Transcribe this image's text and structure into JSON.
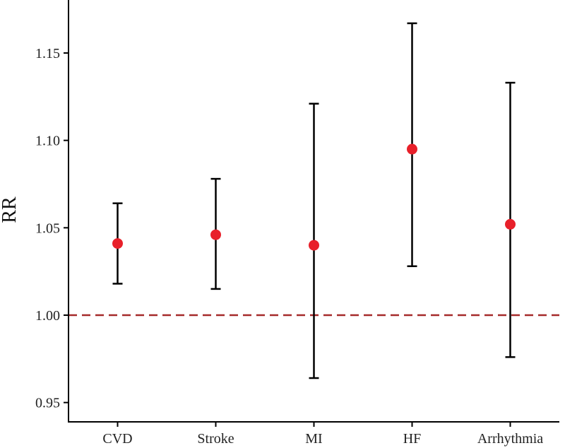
{
  "chart_data": {
    "type": "scatter",
    "title": "",
    "xlabel": "",
    "ylabel": "RR",
    "ylim": [
      0.93,
      1.19
    ],
    "yticks": [
      0.95,
      1.0,
      1.05,
      1.1,
      1.15
    ],
    "ytick_labels": [
      "0.95",
      "1.00",
      "1.05",
      "1.10",
      "1.15"
    ],
    "categories": [
      "CVD",
      "Stroke",
      "MI",
      "HF",
      "Arrhythmia"
    ],
    "estimates": [
      1.041,
      1.046,
      1.04,
      1.095,
      1.052
    ],
    "lower": [
      1.018,
      1.015,
      0.964,
      1.028,
      0.976
    ],
    "upper": [
      1.064,
      1.078,
      1.121,
      1.167,
      1.133
    ],
    "reference_line": 1.0,
    "colors": {
      "point": "#e8202a",
      "errorbar": "#000000",
      "reference": "#a52a2a",
      "axis": "#000000"
    }
  }
}
